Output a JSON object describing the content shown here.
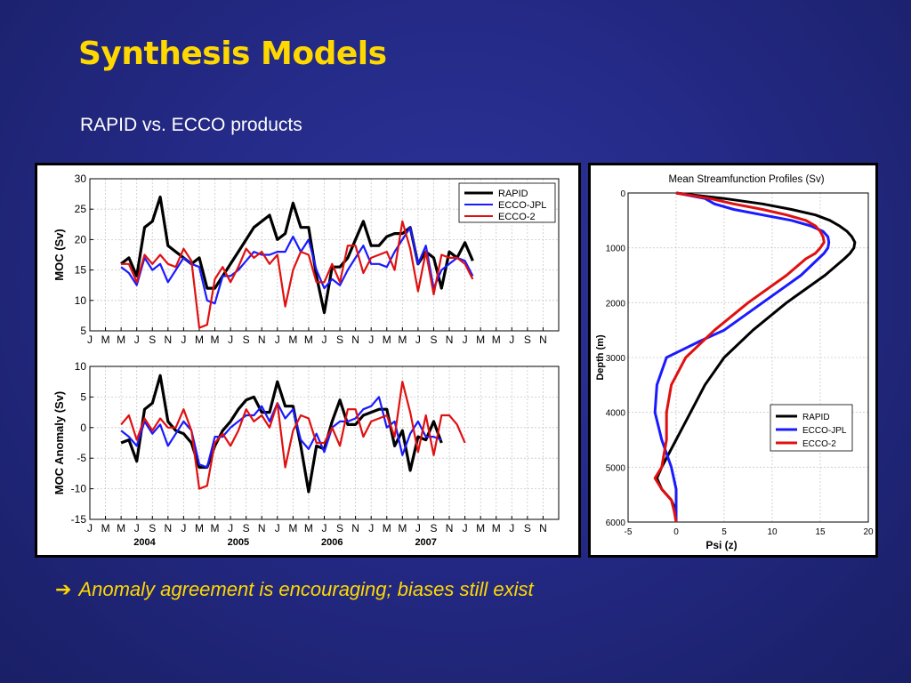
{
  "slide": {
    "title": "Synthesis Models",
    "subtitle": "RAPID vs. ECCO products",
    "bullet_arrow": "➔",
    "bullet_text": "Anomaly agreement is encouraging; biases still exist"
  },
  "colors": {
    "RAPID": "#000000",
    "ECCO-JPL": "#1a1aff",
    "ECCO-2": "#e01010",
    "title": "#ffd800"
  },
  "chart_data": [
    {
      "type": "line",
      "ylabel": "MOC (Sv)",
      "ylim": [
        5,
        30
      ],
      "yticks": [
        5,
        10,
        15,
        20,
        25,
        30
      ],
      "grid": true,
      "legend_position": "top-right",
      "x": [
        1,
        2,
        3,
        4,
        5,
        6,
        7,
        8,
        9,
        10,
        11,
        12,
        13,
        14,
        15,
        16,
        17,
        18,
        19,
        20,
        21,
        22,
        23,
        24,
        25,
        26,
        27,
        28,
        29,
        30,
        31,
        32,
        33,
        34,
        35,
        36,
        37,
        38,
        39,
        40,
        41,
        42,
        43,
        44,
        45,
        46,
        47,
        48,
        49,
        50,
        51,
        52,
        53,
        54,
        55,
        56,
        57,
        58,
        59
      ],
      "xlim": [
        0,
        60
      ],
      "tick_positions": [
        0,
        2,
        4,
        6,
        8,
        10,
        12,
        14,
        16,
        18,
        20,
        22,
        24,
        26,
        28,
        30,
        32,
        34,
        36,
        38,
        40,
        42,
        44,
        46,
        48,
        50,
        52,
        54,
        56,
        58
      ],
      "tick_labels": [
        "J",
        "M",
        "M",
        "J",
        "S",
        "N",
        "J",
        "M",
        "M",
        "J",
        "S",
        "N",
        "J",
        "M",
        "M",
        "J",
        "S",
        "N",
        "J",
        "M",
        "M",
        "J",
        "S",
        "N",
        "J",
        "M",
        "M",
        "J",
        "S",
        "N"
      ],
      "series": [
        {
          "name": "RAPID",
          "values": [
            null,
            null,
            null,
            16,
            17,
            14,
            22,
            23,
            27,
            19,
            18,
            17,
            16,
            17,
            12,
            12,
            14,
            16,
            18,
            20,
            22,
            23,
            24,
            20,
            21,
            26,
            22,
            22,
            14,
            8,
            15.5,
            15.5,
            17,
            20,
            23,
            19,
            19,
            20.5,
            21,
            21,
            22,
            16,
            18,
            17,
            12,
            18,
            17,
            19.5,
            16.5,
            null,
            null,
            null,
            null,
            null,
            null,
            null,
            null,
            null,
            null
          ]
        },
        {
          "name": "ECCO-JPL",
          "values": [
            null,
            null,
            null,
            15.5,
            14.5,
            12.5,
            17,
            15,
            16,
            13,
            15,
            17,
            16,
            15.5,
            10,
            9.5,
            14,
            14,
            15,
            16.5,
            18,
            17.5,
            17.5,
            18,
            18,
            20.5,
            18,
            20,
            15,
            12,
            13.5,
            12.5,
            15,
            17,
            19,
            16,
            16,
            15.5,
            18,
            20,
            22,
            16,
            19,
            12,
            15,
            16,
            17,
            16.5,
            14,
            null,
            null,
            null,
            null,
            null,
            null,
            null,
            null,
            null,
            null
          ]
        },
        {
          "name": "ECCO-2",
          "values": [
            null,
            null,
            null,
            16,
            16,
            13,
            17.5,
            16,
            17.5,
            16,
            15.5,
            18.5,
            16.5,
            5.5,
            6,
            13.5,
            15.5,
            13,
            15.5,
            18.5,
            17,
            18,
            16,
            17.5,
            9,
            15,
            18,
            17.5,
            13,
            13,
            16,
            13,
            19,
            19,
            14.5,
            17,
            17.5,
            18,
            15,
            23,
            18.5,
            11.5,
            18,
            11,
            17.5,
            17,
            17,
            16,
            13.5,
            null,
            null,
            null,
            null,
            null,
            null,
            null,
            null,
            null,
            null
          ]
        }
      ]
    },
    {
      "type": "line",
      "ylabel": "MOC Anomaly (Sv)",
      "ylim": [
        -15,
        10
      ],
      "yticks": [
        -15,
        -10,
        -5,
        0,
        5,
        10
      ],
      "grid": true,
      "x": [
        1,
        2,
        3,
        4,
        5,
        6,
        7,
        8,
        9,
        10,
        11,
        12,
        13,
        14,
        15,
        16,
        17,
        18,
        19,
        20,
        21,
        22,
        23,
        24,
        25,
        26,
        27,
        28,
        29,
        30,
        31,
        32,
        33,
        34,
        35,
        36,
        37,
        38,
        39,
        40,
        41,
        42,
        43,
        44,
        45,
        46,
        47,
        48,
        49,
        50,
        51,
        52,
        53,
        54,
        55,
        56,
        57,
        58,
        59
      ],
      "xlim": [
        0,
        60
      ],
      "tick_positions": [
        0,
        2,
        4,
        6,
        8,
        10,
        12,
        14,
        16,
        18,
        20,
        22,
        24,
        26,
        28,
        30,
        32,
        34,
        36,
        38,
        40,
        42,
        44,
        46,
        48,
        50,
        52,
        54,
        56,
        58
      ],
      "tick_labels": [
        "J",
        "M",
        "M",
        "J",
        "S",
        "N",
        "J",
        "M",
        "M",
        "J",
        "S",
        "N",
        "J",
        "M",
        "M",
        "J",
        "S",
        "N",
        "J",
        "M",
        "M",
        "J",
        "S",
        "N",
        "J",
        "M",
        "M",
        "J",
        "S",
        "N"
      ],
      "year_labels": [
        {
          "x": 7,
          "label": "2004"
        },
        {
          "x": 19,
          "label": "2005"
        },
        {
          "x": 31,
          "label": "2006"
        },
        {
          "x": 43,
          "label": "2007"
        }
      ],
      "series": [
        {
          "name": "RAPID",
          "values": [
            null,
            null,
            null,
            -2.5,
            -2,
            -5.5,
            3,
            4,
            8.5,
            1,
            -0.5,
            -1,
            -2.5,
            -6.5,
            -6.5,
            -3,
            -0.5,
            1,
            3,
            4.5,
            5,
            2.5,
            2.5,
            7.5,
            3.5,
            3.5,
            -3,
            -10.5,
            -3,
            -3.5,
            1,
            4.5,
            0.5,
            0.5,
            2,
            2.5,
            3,
            3,
            -3,
            -0.5,
            -7,
            -1.5,
            -2,
            1,
            -2.5,
            null,
            null,
            null,
            null,
            null,
            null,
            null,
            null,
            null,
            null,
            null,
            null,
            null,
            null
          ]
        },
        {
          "name": "ECCO-JPL",
          "values": [
            null,
            null,
            null,
            -0.5,
            -1.5,
            -3,
            1,
            -1,
            0.5,
            -3,
            -1,
            1,
            -0.5,
            -6,
            -6.5,
            -1.5,
            -1.5,
            0,
            1,
            2,
            2,
            3.5,
            1,
            4,
            1.5,
            3,
            -2,
            -3.5,
            -1,
            -4,
            0,
            1,
            1,
            1.5,
            3,
            3.5,
            5,
            0,
            1,
            -4.5,
            -1,
            1,
            -1.5,
            -1.5,
            -2,
            null,
            null,
            null,
            null,
            null,
            null,
            null,
            null,
            null,
            null,
            null,
            null,
            null,
            null
          ]
        },
        {
          "name": "ECCO-2",
          "values": [
            null,
            null,
            null,
            0.5,
            2,
            -2,
            1.5,
            -0.5,
            1.5,
            0,
            0,
            3,
            -0.5,
            -10,
            -9.5,
            -2.5,
            -1,
            -3,
            -0.5,
            3,
            1,
            2,
            0,
            4,
            -6.5,
            -0.5,
            2,
            1.5,
            -2.5,
            -2.5,
            0,
            -3,
            3,
            3,
            -1.5,
            1,
            1.5,
            2,
            -1.5,
            7.5,
            2.5,
            -4,
            2,
            -4.5,
            2,
            2,
            0.5,
            -2.5,
            null,
            null,
            null,
            null,
            null,
            null,
            null,
            null,
            null,
            null,
            null
          ]
        }
      ]
    },
    {
      "type": "line",
      "title": "Mean Streamfunction Profiles (Sv)",
      "xlabel": "Psi (z)",
      "ylabel": "Depth (m)",
      "xlim": [
        -5,
        20
      ],
      "ylim": [
        6000,
        0
      ],
      "xticks": [
        -5,
        0,
        5,
        10,
        15,
        20
      ],
      "yticks": [
        0,
        1000,
        2000,
        3000,
        4000,
        5000,
        6000
      ],
      "grid": true,
      "legend_position": "bottom-right",
      "series": [
        {
          "name": "RAPID",
          "depth": [
            0,
            100,
            200,
            300,
            400,
            500,
            600,
            700,
            800,
            900,
            1000,
            1100,
            1200,
            1500,
            2000,
            2500,
            3000,
            3500,
            4000,
            4500,
            5000,
            5200,
            5400,
            5600,
            5800,
            6000
          ],
          "psi": [
            0,
            5,
            9,
            12,
            14.5,
            16,
            17,
            17.8,
            18.3,
            18.6,
            18.5,
            18.1,
            17.5,
            15.5,
            11.5,
            8,
            5,
            3,
            1.5,
            0,
            -1.5,
            -2,
            -1.5,
            -0.5,
            0,
            0
          ]
        },
        {
          "name": "ECCO-JPL",
          "depth": [
            0,
            100,
            200,
            300,
            400,
            500,
            600,
            700,
            800,
            900,
            1000,
            1100,
            1200,
            1500,
            2000,
            2500,
            2700,
            3000,
            3500,
            4000,
            4500,
            5000,
            5400,
            5800,
            6000
          ],
          "psi": [
            0,
            3,
            4,
            6,
            9,
            12,
            14,
            15.3,
            15.8,
            15.9,
            15.8,
            15.4,
            14.8,
            13,
            9,
            5,
            2.5,
            -1,
            -2,
            -2.2,
            -1.5,
            -0.5,
            0,
            0,
            0
          ]
        },
        {
          "name": "ECCO-2",
          "depth": [
            0,
            100,
            200,
            300,
            400,
            500,
            600,
            700,
            800,
            900,
            1000,
            1100,
            1200,
            1500,
            2000,
            2500,
            3000,
            3500,
            4000,
            4500,
            5000,
            5200,
            5400,
            5600,
            5800,
            6000
          ],
          "psi": [
            0,
            3.5,
            6,
            9,
            11.5,
            13.5,
            14.5,
            15,
            15.3,
            15.4,
            15,
            14.5,
            13.5,
            11.5,
            7.5,
            4,
            1,
            -0.5,
            -1,
            -1,
            -1.5,
            -2.2,
            -1.5,
            -0.5,
            -0.2,
            0
          ]
        }
      ]
    }
  ]
}
